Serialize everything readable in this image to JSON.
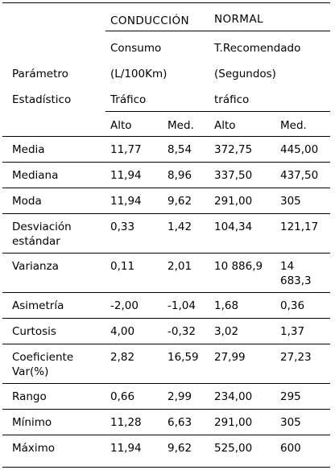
{
  "header": {
    "group_conduccion": "CONDUCCIÓN",
    "group_normal": "NORMAL",
    "consumo": "Consumo",
    "consumo_units": "(L/100Km)",
    "trecomendado": "T.Recomendado",
    "trecomendado_units": "(Segundos)",
    "parametro": "Parámetro",
    "estadistico": "Estadístico",
    "trafico_1": "Tráfico",
    "trafico_2": "tráfico",
    "alto_1": "Alto",
    "med_1": "Med.",
    "alto_2": "Alto",
    "med_2": "Med."
  },
  "rows": [
    {
      "label": [
        "Media"
      ],
      "c1": [
        "11,77"
      ],
      "c2": [
        "8,54"
      ],
      "c3": [
        "372,75"
      ],
      "c4": [
        "445,00"
      ]
    },
    {
      "label": [
        "Mediana"
      ],
      "c1": [
        "11,94"
      ],
      "c2": [
        "8,96"
      ],
      "c3": [
        "337,50"
      ],
      "c4": [
        "437,50"
      ]
    },
    {
      "label": [
        "Moda"
      ],
      "c1": [
        "11,94"
      ],
      "c2": [
        "9,62"
      ],
      "c3": [
        "291,00"
      ],
      "c4": [
        "305"
      ]
    },
    {
      "label": [
        "Desviación",
        "estándar"
      ],
      "c1": [
        "0,33"
      ],
      "c2": [
        "1,42"
      ],
      "c3": [
        "104,34"
      ],
      "c4": [
        "121,17"
      ]
    },
    {
      "label": [
        "Varianza"
      ],
      "c1": [
        "0,11"
      ],
      "c2": [
        "2,01"
      ],
      "c3": [
        "10 886,9"
      ],
      "c4": [
        "14",
        "683,3"
      ]
    },
    {
      "label": [
        "Asimetría"
      ],
      "c1": [
        "-2,00"
      ],
      "c2": [
        "-1,04"
      ],
      "c3": [
        "1,68"
      ],
      "c4": [
        "0,36"
      ]
    },
    {
      "label": [
        "Curtosis"
      ],
      "c1": [
        "4,00"
      ],
      "c2": [
        "-0,32"
      ],
      "c3": [
        "3,02"
      ],
      "c4": [
        "1,37"
      ]
    },
    {
      "label": [
        "Coeficiente",
        "Var(%)"
      ],
      "c1": [
        "2,82"
      ],
      "c2": [
        "16,59"
      ],
      "c3": [
        "27,99"
      ],
      "c4": [
        "27,23"
      ]
    },
    {
      "label": [
        "Rango"
      ],
      "c1": [
        "0,66"
      ],
      "c2": [
        "2,99"
      ],
      "c3": [
        "234,00"
      ],
      "c4": [
        "295"
      ]
    },
    {
      "label": [
        "Mínimo"
      ],
      "c1": [
        "11,28"
      ],
      "c2": [
        "6,63"
      ],
      "c3": [
        "291,00"
      ],
      "c4": [
        "305"
      ]
    },
    {
      "label": [
        "Máximo"
      ],
      "c1": [
        "11,94"
      ],
      "c2": [
        "9,62"
      ],
      "c3": [
        "525,00"
      ],
      "c4": [
        "600"
      ]
    }
  ]
}
